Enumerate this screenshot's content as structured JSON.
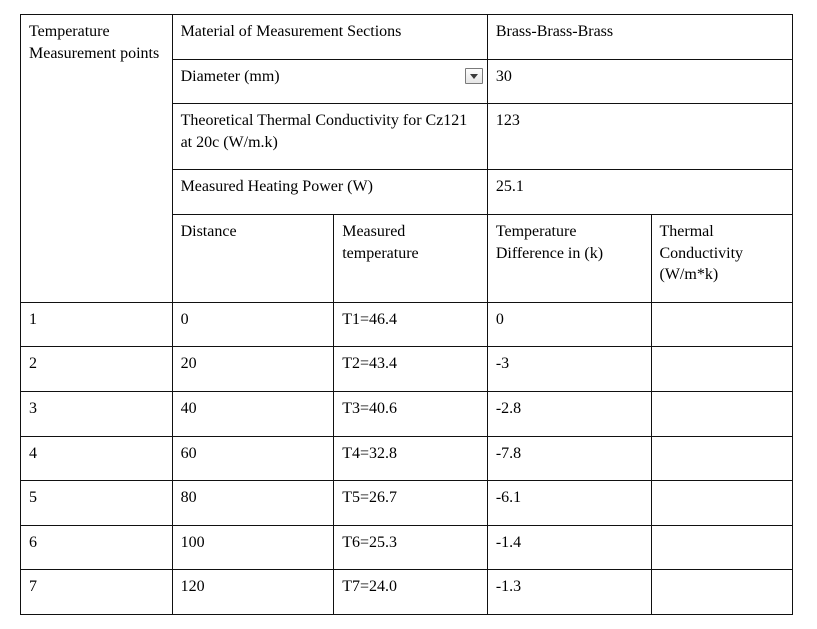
{
  "header": {
    "points_label": "Temperature Measurement points",
    "material_label": "Material of Measurement Sections",
    "material_value": "Brass-Brass-Brass",
    "diameter_label": "Diameter (mm)",
    "diameter_value": "30",
    "theoretical_label": "Theoretical Thermal Conductivity for Cz121 at 20c (W/m.k)",
    "theoretical_value": "123",
    "power_label": "Measured Heating Power (W)",
    "power_value": "25.1"
  },
  "columns": {
    "distance": "Distance",
    "measured_temp": "Measured temperature",
    "temp_diff": "Temperature Difference in (k)",
    "thermal_cond": "Thermal Conductivity (W/m*k)"
  },
  "rows": [
    {
      "point": "1",
      "distance": "0",
      "temp": "T1=46.4",
      "diff": "0",
      "cond": ""
    },
    {
      "point": "2",
      "distance": "20",
      "temp": "T2=43.4",
      "diff": "-3",
      "cond": ""
    },
    {
      "point": "3",
      "distance": "40",
      "temp": "T3=40.6",
      "diff": "-2.8",
      "cond": ""
    },
    {
      "point": "4",
      "distance": "60",
      "temp": "T4=32.8",
      "diff": "-7.8",
      "cond": ""
    },
    {
      "point": "5",
      "distance": "80",
      "temp": "T5=26.7",
      "diff": "-6.1",
      "cond": ""
    },
    {
      "point": "6",
      "distance": "100",
      "temp": "T6=25.3",
      "diff": "-1.4",
      "cond": ""
    },
    {
      "point": "7",
      "distance": "120",
      "temp": "T7=24.0",
      "diff": "-1.3",
      "cond": ""
    }
  ],
  "style": {
    "font_family": "Times New Roman",
    "font_size_pt": 12,
    "text_color": "#000000",
    "border_color": "#111111",
    "background_color": "#ffffff"
  },
  "icons": {
    "dropdown": "dropdown-icon"
  }
}
